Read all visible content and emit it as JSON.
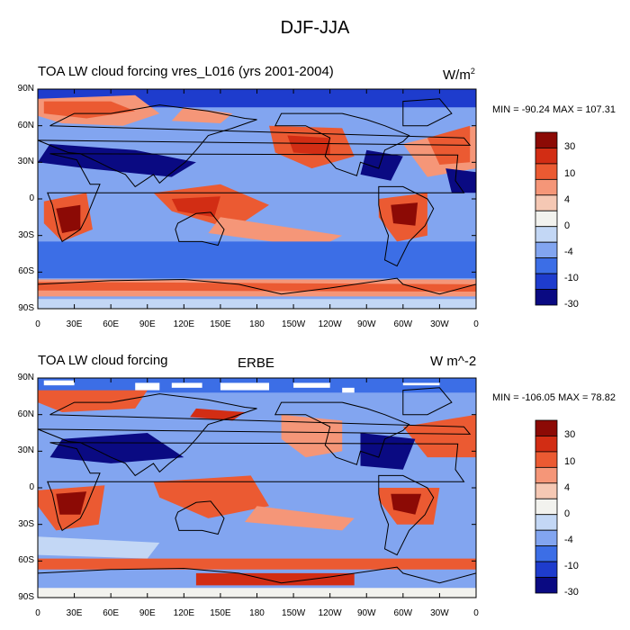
{
  "title": "DJF-JJA",
  "colors": {
    "dark_blue": "#0a0a82",
    "blue": "#1e3ccd",
    "mid_blue": "#3c6ee6",
    "light_blue": "#82a5f0",
    "pale_blue": "#c3d7f5",
    "white": "#f2f2ee",
    "pale_red": "#f5c8b4",
    "light_red": "#f59678",
    "red": "#eb5a32",
    "deep_red": "#d22d14",
    "dark_red": "#8c0a05"
  },
  "colorbar": {
    "labels": [
      "30",
      "10",
      "4",
      "0",
      "-4",
      "-10",
      "-30"
    ]
  },
  "chart_data": [
    {
      "type": "heatmap",
      "title": "TOA LW cloud forcing vres_L016 (yrs 2001-2004)",
      "units_prefix": "W/m",
      "units_sup": "2",
      "center_title": "",
      "stats": "MIN = -90.24 MAX = 107.31",
      "min": -90.24,
      "max": 107.31,
      "lat_ticks": [
        "90N",
        "60N",
        "30N",
        "0",
        "30S",
        "60S",
        "90S"
      ],
      "lon_ticks": [
        "0",
        "30E",
        "60E",
        "90E",
        "120E",
        "150E",
        "180",
        "150W",
        "120W",
        "90W",
        "60W",
        "30W",
        "0"
      ],
      "xlim": [
        0,
        360
      ],
      "ylim": [
        -90,
        90
      ]
    },
    {
      "type": "heatmap",
      "title": "TOA LW cloud forcing",
      "units_prefix": "W m^-2",
      "units_sup": "",
      "center_title": "ERBE",
      "stats": "MIN = -106.05 MAX =  78.82",
      "min": -106.05,
      "max": 78.82,
      "lat_ticks": [
        "90N",
        "60N",
        "30N",
        "0",
        "30S",
        "60S",
        "90S"
      ],
      "lon_ticks": [
        "0",
        "30E",
        "60E",
        "90E",
        "120E",
        "150E",
        "180",
        "150W",
        "120W",
        "90W",
        "60W",
        "30W",
        "0"
      ],
      "xlim": [
        0,
        360
      ],
      "ylim": [
        -90,
        90
      ]
    }
  ]
}
